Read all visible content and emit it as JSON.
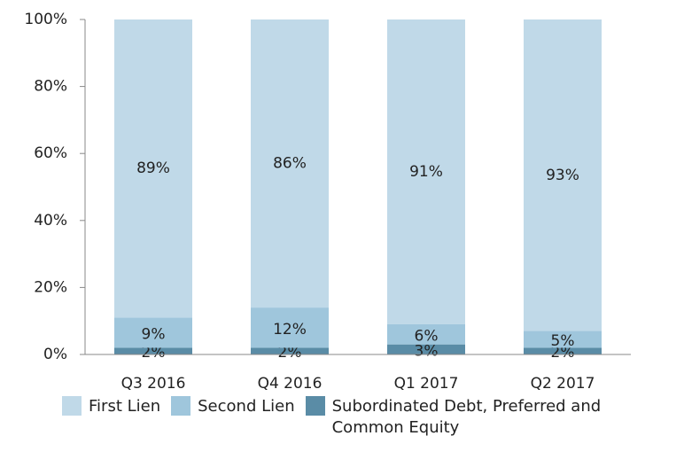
{
  "chart_data": {
    "type": "stacked_bar",
    "categories": [
      "Q3 2016",
      "Q4 2016",
      "Q1 2017",
      "Q2 2017"
    ],
    "series": [
      {
        "name": "Subordinated Debt, Preferred and Common Equity",
        "color": "#5a8ca6",
        "values": [
          2,
          2,
          3,
          2
        ],
        "value_labels": [
          "2%",
          "2%",
          "3%",
          "2%"
        ]
      },
      {
        "name": "Second Lien",
        "color": "#9fc6dc",
        "values": [
          9,
          12,
          6,
          5
        ],
        "value_labels": [
          "9%",
          "12%",
          "6%",
          "5%"
        ]
      },
      {
        "name": "First Lien",
        "color": "#c0d9e8",
        "values": [
          89,
          86,
          91,
          93
        ],
        "value_labels": [
          "89%",
          "86%",
          "91%",
          "93%"
        ]
      }
    ],
    "legend_order": [
      2,
      1,
      0
    ],
    "ylim": [
      0,
      100
    ],
    "yticks": [
      {
        "value": 0,
        "label": "0%"
      },
      {
        "value": 20,
        "label": "20%"
      },
      {
        "value": 40,
        "label": "40%"
      },
      {
        "value": 60,
        "label": "60%"
      },
      {
        "value": 80,
        "label": "80%"
      },
      {
        "value": 100,
        "label": "100%"
      }
    ],
    "grid": false,
    "legend": "bottom"
  }
}
